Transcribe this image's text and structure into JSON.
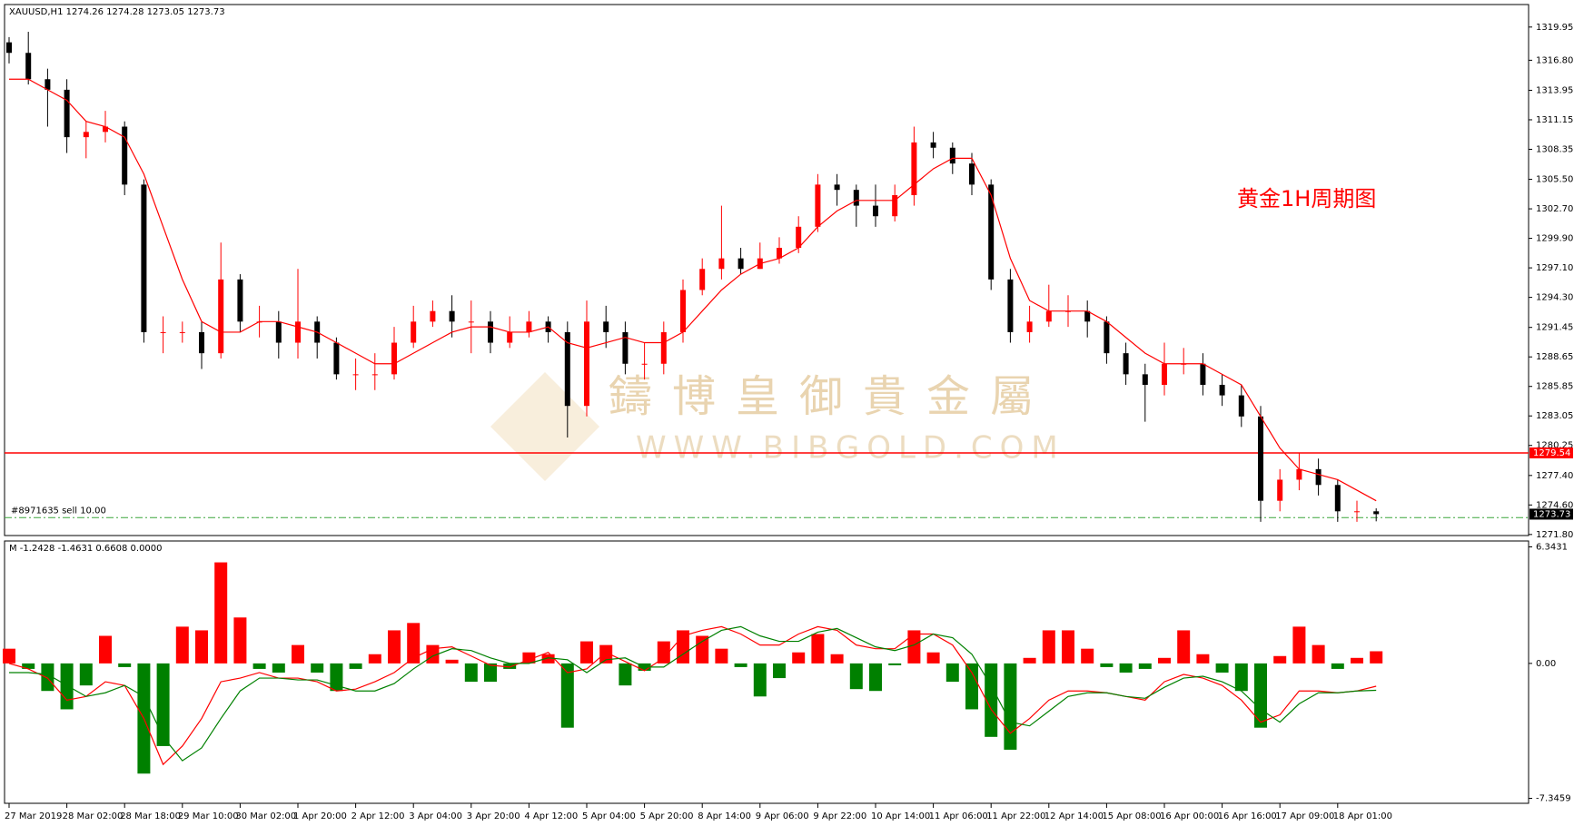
{
  "chart_data": {
    "type": "candlestick",
    "title": "XAUUSD,H1  1274.26 1274.28 1273.05 1273.73",
    "annotation": "黄金1H周期图",
    "watermark": "鑄博皇御貴金屬",
    "watermark_url": "WWW.BIBGOLD.COM",
    "categories": [
      "27 Mar 2019",
      null,
      null,
      "28 Mar 02:00",
      null,
      null,
      "28 Mar 18:00",
      null,
      null,
      "29 Mar 10:00",
      null,
      null,
      "30 Mar 02:00",
      null,
      null,
      "1 Apr 20:00",
      null,
      null,
      "2 Apr 12:00",
      null,
      null,
      "3 Apr 04:00",
      null,
      null,
      "3 Apr 20:00",
      null,
      null,
      "4 Apr 12:00",
      null,
      null,
      "5 Apr 04:00",
      null,
      null,
      "5 Apr 20:00",
      null,
      null,
      "8 Apr 14:00",
      null,
      null,
      "9 Apr 06:00",
      null,
      null,
      "9 Apr 22:00",
      null,
      null,
      "10 Apr 14:00",
      null,
      null,
      "11 Apr 06:00",
      null,
      null,
      "11 Apr 22:00",
      null,
      null,
      "12 Apr 14:00",
      null,
      null,
      "15 Apr 08:00",
      null,
      null,
      "16 Apr 00:00",
      null,
      null,
      "16 Apr 16:00",
      null,
      null,
      "17 Apr 09:00",
      null,
      null,
      "18 Apr 01:00",
      null,
      null
    ],
    "open": [
      1318.5,
      1317.5,
      1315,
      1314,
      1309.5,
      1310,
      1310.5,
      1305,
      1291,
      1291,
      1291,
      1289,
      1296,
      1292,
      1292,
      1290,
      1292,
      1290,
      1287,
      1287,
      1287,
      1290,
      1292,
      1293,
      1292,
      1292,
      1290,
      1291,
      1292,
      1291,
      1284,
      1292,
      1291,
      1288,
      1288,
      1291,
      1295,
      1297,
      1298,
      1297,
      1298,
      1299,
      1301,
      1305,
      1304.5,
      1303,
      1302,
      1304,
      1309,
      1308.5,
      1307,
      1305,
      1296,
      1291,
      1292,
      1293,
      1293,
      1292,
      1289,
      1287,
      1286,
      1288,
      1288,
      1286,
      1285,
      1283,
      1275,
      1277,
      1278,
      1276.5,
      1274,
      1274
    ],
    "high": [
      1319,
      1319.5,
      1316,
      1315,
      1311,
      1312,
      1311,
      1305.5,
      1292.5,
      1292,
      1292,
      1299.5,
      1296.5,
      1293.5,
      1293,
      1297,
      1292.5,
      1290.5,
      1288.5,
      1289,
      1291.5,
      1293.5,
      1294,
      1294.5,
      1294,
      1293,
      1292.5,
      1293,
      1292.5,
      1292,
      1294,
      1293.5,
      1292,
      1290,
      1292,
      1296,
      1298,
      1303,
      1299,
      1299.5,
      1300,
      1302,
      1306,
      1306,
      1305,
      1305,
      1305,
      1310.5,
      1310,
      1309,
      1308,
      1305.5,
      1297,
      1293.5,
      1295.5,
      1294.5,
      1294,
      1292.5,
      1290,
      1288,
      1290,
      1289.5,
      1289,
      1287,
      1286,
      1284,
      1278,
      1279.5,
      1279,
      1277,
      1275,
      1274.28
    ],
    "low": [
      1316.5,
      1314.5,
      1310.5,
      1308,
      1307.5,
      1309,
      1304,
      1290,
      1289,
      1290,
      1287.5,
      1288.5,
      1291,
      1290.5,
      1288.5,
      1288.5,
      1288.5,
      1286.5,
      1285.5,
      1285.5,
      1286.5,
      1289.5,
      1291.5,
      1290.5,
      1289,
      1289,
      1289.5,
      1290.5,
      1290,
      1281,
      1283,
      1289.5,
      1287,
      1286.5,
      1287,
      1290,
      1294.5,
      1296,
      1296.5,
      1297,
      1297.5,
      1298.5,
      1300.5,
      1303,
      1301,
      1301,
      1301.5,
      1303,
      1307.5,
      1306,
      1304,
      1295,
      1290,
      1290,
      1291.5,
      1291.5,
      1290.5,
      1288,
      1286,
      1282.5,
      1285,
      1287,
      1285,
      1284,
      1282,
      1273,
      1274,
      1276,
      1275.5,
      1273,
      1273,
      1273.05
    ],
    "close": [
      1317.5,
      1315,
      1314,
      1309.5,
      1310,
      1310.5,
      1305,
      1291,
      1291,
      1291,
      1289,
      1296,
      1292,
      1292,
      1290,
      1292,
      1290,
      1287,
      1287,
      1287,
      1290,
      1292,
      1293,
      1292,
      1292,
      1290,
      1291,
      1292,
      1291,
      1284,
      1292,
      1291,
      1288,
      1288,
      1291,
      1295,
      1297,
      1298,
      1297,
      1298,
      1299,
      1301,
      1305,
      1304.5,
      1303,
      1302,
      1304,
      1309,
      1308.5,
      1307,
      1305,
      1296,
      1291,
      1292,
      1293,
      1293,
      1292,
      1289,
      1287,
      1286,
      1288,
      1288,
      1286,
      1285,
      1283,
      1275,
      1277,
      1278,
      1276.5,
      1274,
      1274,
      1273.73
    ],
    "up_color": "#ff0000",
    "down_color": "#000000",
    "ma": {
      "color": "#ff0000",
      "values": [
        1315,
        1315,
        1314,
        1313,
        1311,
        1310.5,
        1309.5,
        1306,
        1301,
        1296,
        1292,
        1291,
        1291,
        1292,
        1292,
        1291.5,
        1291,
        1290,
        1289,
        1288,
        1288,
        1289,
        1290,
        1291,
        1291.5,
        1291.5,
        1291,
        1291,
        1291.5,
        1290,
        1289.5,
        1290,
        1290.5,
        1290,
        1290,
        1291,
        1293,
        1295,
        1296.5,
        1297.5,
        1298,
        1299,
        1301,
        1302.5,
        1303.5,
        1303.5,
        1303.5,
        1305,
        1306.5,
        1307.5,
        1307.5,
        1304,
        1298,
        1294,
        1293,
        1293,
        1293,
        1292,
        1290.5,
        1289,
        1288,
        1288,
        1288,
        1287,
        1286,
        1283,
        1280,
        1278,
        1277.5,
        1277,
        1276,
        1275
      ]
    },
    "levels": [
      {
        "value": 1279.54,
        "color": "#ff0000"
      },
      {
        "value": 1273.73,
        "color": "#000000"
      }
    ],
    "order": {
      "label": "#8971635 sell 10.00",
      "value": 1273.4,
      "color": "#3aa53a"
    },
    "ylim": [
      1271.7,
      1322.0
    ],
    "yticks": [
      1319.95,
      {
        "value": 1316.8,
        "label": "1316.80"
      },
      1313.95,
      1311.15,
      1308.35,
      {
        "value": 1305.5,
        "label": "1305.50"
      },
      {
        "value": 1302.7,
        "label": "1302.70"
      },
      {
        "value": 1299.9,
        "label": "1299.90"
      },
      {
        "value": 1297.1,
        "label": "1297.10"
      },
      {
        "value": 1294.3,
        "label": "1294.30"
      },
      1291.45,
      1288.65,
      1285.85,
      1283.05,
      1280.25,
      {
        "value": 1277.4,
        "label": "1277.40"
      },
      {
        "value": 1274.6,
        "label": "1274.60"
      },
      {
        "value": 1271.8,
        "label": "1271.80"
      }
    ],
    "indicator": {
      "type": "histogram",
      "label": "M -1.2428 -1.4631 0.6608 0.0000",
      "pos_color": "#ff0000",
      "neg_color": "#008000",
      "values": [
        0.8,
        -0.3,
        -1.5,
        -2.5,
        -1.2,
        1.5,
        -0.2,
        -6.0,
        -4.5,
        2.0,
        1.8,
        5.5,
        2.5,
        -0.3,
        -0.5,
        1.0,
        -0.5,
        -1.5,
        -0.3,
        0.5,
        1.8,
        2.2,
        1.0,
        0.2,
        -1.0,
        -1.0,
        -0.3,
        0.6,
        0.5,
        -3.5,
        1.2,
        1.0,
        -1.2,
        -0.4,
        1.2,
        1.8,
        1.5,
        0.8,
        -0.2,
        -1.8,
        -0.8,
        0.6,
        1.6,
        0.5,
        -1.4,
        -1.5,
        -0.1,
        1.8,
        0.6,
        -1.0,
        -2.5,
        -4.0,
        -4.7,
        0.3,
        1.8,
        1.8,
        0.8,
        -0.2,
        -0.5,
        -0.3,
        0.3,
        1.8,
        0.5,
        -0.5,
        -1.5,
        -3.5,
        0.4,
        2.0,
        1.0,
        -0.3,
        0.3,
        0.6608
      ],
      "series": [
        {
          "color": "#ff0000",
          "values": [
            0,
            -0.3,
            -0.8,
            -2.0,
            -1.8,
            -1.0,
            -1.2,
            -3.0,
            -5.5,
            -4.5,
            -3.0,
            -1.0,
            -0.8,
            -0.5,
            -0.8,
            -0.8,
            -1.0,
            -1.5,
            -1.4,
            -1.0,
            -0.5,
            0.3,
            0.8,
            0.9,
            0.4,
            -0.1,
            -0.2,
            0.2,
            0.6,
            -0.5,
            -0.3,
            0.6,
            0.1,
            -0.4,
            0.3,
            1.5,
            1.8,
            2.0,
            1.6,
            1.0,
            1.0,
            1.6,
            2.0,
            1.8,
            1.0,
            0.8,
            0.8,
            1.6,
            1.6,
            1.0,
            -0.5,
            -2.5,
            -3.8,
            -3.0,
            -2.0,
            -1.5,
            -1.5,
            -1.6,
            -1.8,
            -2.0,
            -1.0,
            -0.6,
            -0.8,
            -1.2,
            -2.0,
            -3.2,
            -2.8,
            -1.5,
            -1.5,
            -1.6,
            -1.5,
            -1.2428
          ]
        },
        {
          "color": "#008000",
          "values": [
            -0.5,
            -0.5,
            -0.6,
            -1.2,
            -1.8,
            -1.6,
            -1.2,
            -1.8,
            -4.0,
            -5.3,
            -4.6,
            -3.0,
            -1.5,
            -0.8,
            -0.8,
            -0.9,
            -0.9,
            -1.2,
            -1.5,
            -1.5,
            -1.1,
            -0.3,
            0.4,
            0.8,
            0.7,
            0.3,
            0.0,
            0.0,
            0.3,
            0.2,
            -0.5,
            0.2,
            0.3,
            -0.2,
            -0.2,
            0.5,
            1.2,
            1.8,
            2.0,
            1.5,
            1.2,
            1.2,
            1.7,
            1.9,
            1.4,
            0.9,
            0.7,
            1.0,
            1.6,
            1.4,
            0.5,
            -1.2,
            -3.2,
            -3.4,
            -2.6,
            -1.8,
            -1.6,
            -1.6,
            -1.8,
            -1.9,
            -1.3,
            -0.8,
            -0.7,
            -1.0,
            -1.5,
            -2.5,
            -3.2,
            -2.2,
            -1.6,
            -1.6,
            -1.5,
            -1.4631
          ]
        }
      ],
      "ylim": [
        -7.617,
        6.615
      ],
      "yticks": [
        6.3431,
        {
          "value": 0,
          "label": "0.00"
        },
        -7.3459
      ]
    }
  }
}
